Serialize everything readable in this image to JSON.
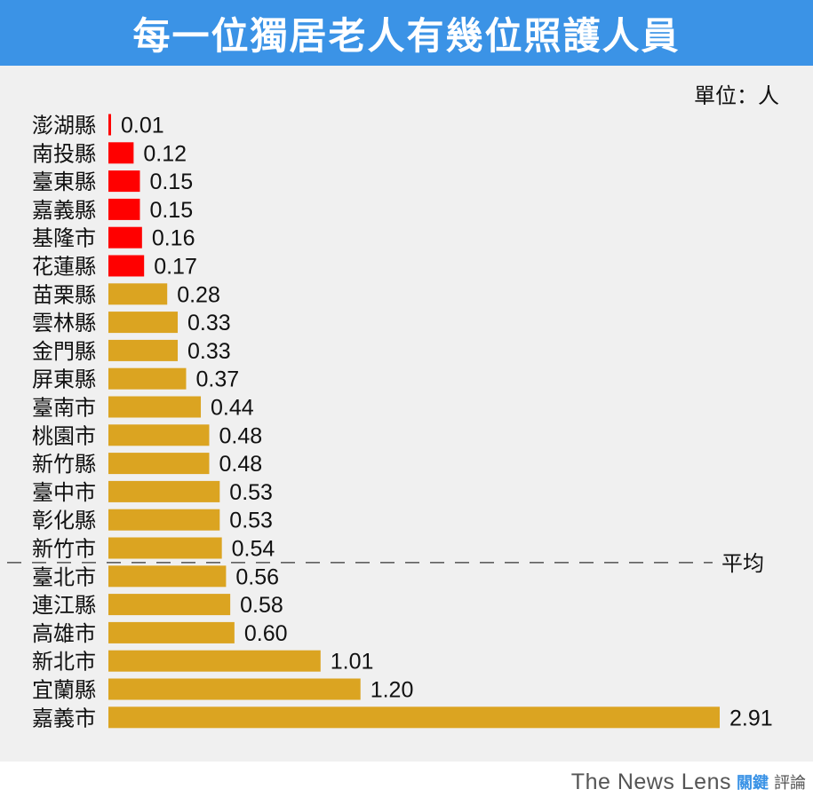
{
  "title": "每一位獨居老人有幾位照護人員",
  "unit_label": "單位：人",
  "brand": {
    "name": "The News Lens",
    "cn_highlight": "關鍵",
    "cn_rest": "評論"
  },
  "colors": {
    "header": "#3b93e6",
    "below_threshold": "#ff0000",
    "above_threshold": "#dba421",
    "average_line": "#333333"
  },
  "chart_data": {
    "type": "bar",
    "orientation": "horizontal",
    "categories": [
      "澎湖縣",
      "南投縣",
      "臺東縣",
      "嘉義縣",
      "基隆市",
      "花蓮縣",
      "苗栗縣",
      "雲林縣",
      "金門縣",
      "屏東縣",
      "臺南市",
      "桃園市",
      "新竹縣",
      "臺中市",
      "彰化縣",
      "新竹市",
      "臺北市",
      "連江縣",
      "高雄市",
      "新北市",
      "宜蘭縣",
      "嘉義市"
    ],
    "values": [
      0.01,
      0.12,
      0.15,
      0.15,
      0.16,
      0.17,
      0.28,
      0.33,
      0.33,
      0.37,
      0.44,
      0.48,
      0.48,
      0.53,
      0.53,
      0.54,
      0.56,
      0.58,
      0.6,
      1.01,
      1.2,
      2.91
    ],
    "value_labels": [
      "0.01",
      "0.12",
      "0.15",
      "0.15",
      "0.16",
      "0.17",
      "0.28",
      "0.33",
      "0.33",
      "0.37",
      "0.44",
      "0.48",
      "0.48",
      "0.53",
      "0.53",
      "0.54",
      "0.56",
      "0.58",
      "0.60",
      "1.01",
      "1.20",
      "2.91"
    ],
    "highlighted_categories": [
      "澎湖縣",
      "南投縣",
      "臺東縣",
      "嘉義縣",
      "基隆市",
      "花蓮縣"
    ],
    "xlim": [
      0,
      2.91
    ],
    "grid": false,
    "legend": "none",
    "reference_line": {
      "label": "平均",
      "after_category": "新竹市",
      "style": "dashed"
    }
  }
}
